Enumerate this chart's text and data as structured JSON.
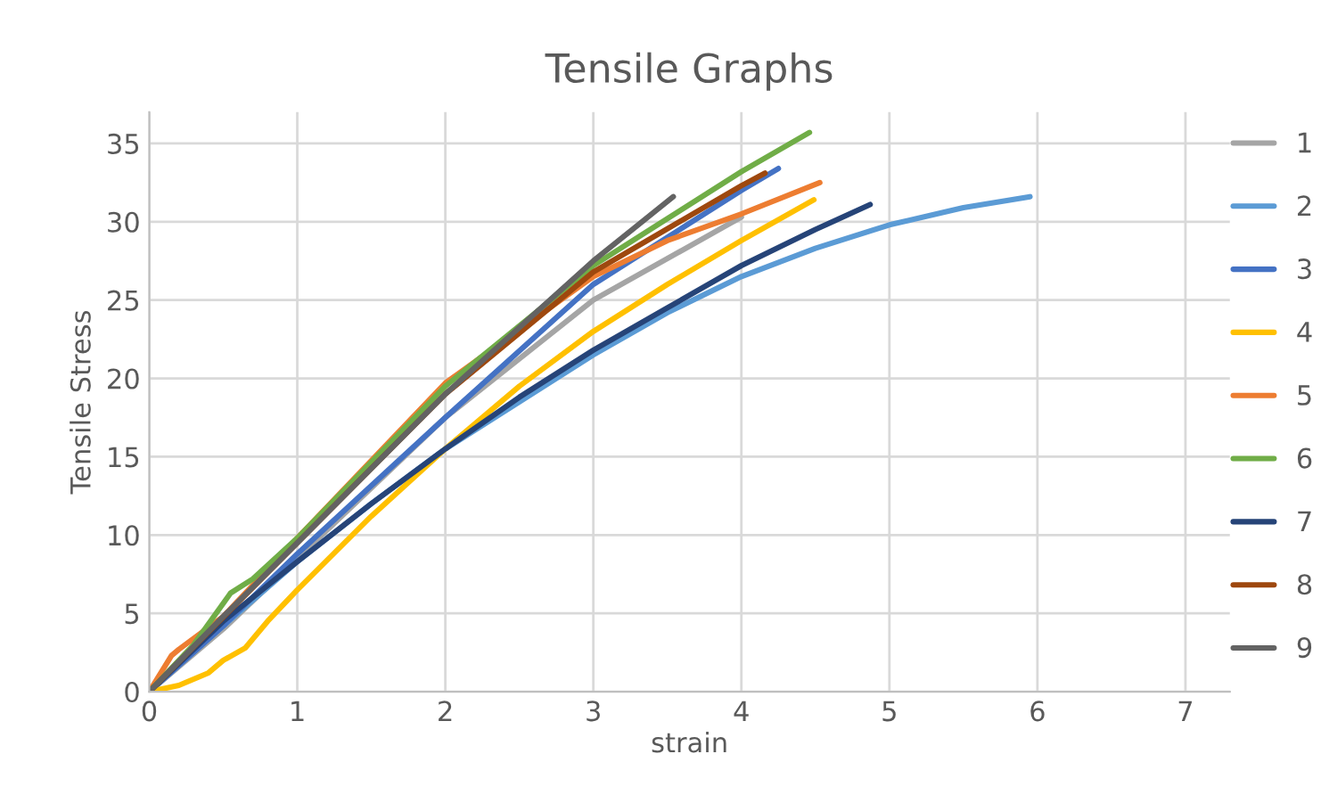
{
  "chart_data": {
    "type": "line",
    "title": "Tensile Graphs",
    "xlabel": "strain",
    "ylabel": "Tensile Stress",
    "xlim": [
      0,
      7.3
    ],
    "xticks": [
      0,
      1,
      2,
      3,
      4,
      5,
      6,
      7
    ],
    "ylim": [
      0,
      37
    ],
    "yticks": [
      0,
      5,
      10,
      15,
      20,
      25,
      30,
      35
    ],
    "grid": true,
    "legend": "right",
    "marker": "none",
    "line_style": "solid",
    "series": [
      {
        "name": "1",
        "color": "#a5a5a5",
        "x": [
          0,
          0.5,
          1,
          2,
          3,
          4
        ],
        "values": [
          0,
          4,
          8.5,
          17.5,
          25,
          30.3
        ]
      },
      {
        "name": "2",
        "color": "#5b9bd5",
        "x": [
          0,
          0.5,
          1,
          1.5,
          2,
          2.5,
          3,
          3.5,
          4,
          4.5,
          5,
          5.5,
          5.95
        ],
        "values": [
          0,
          4.2,
          8.3,
          12,
          15.5,
          18.5,
          21.5,
          24.2,
          26.5,
          28.3,
          29.8,
          30.9,
          31.6
        ]
      },
      {
        "name": "3",
        "color": "#4472c4",
        "x": [
          0,
          0.5,
          1,
          2,
          3,
          4,
          4.25
        ],
        "values": [
          0,
          4.2,
          8.8,
          17.5,
          26,
          32,
          33.4
        ]
      },
      {
        "name": "4",
        "color": "#ffc000",
        "x": [
          0,
          0.2,
          0.4,
          0.5,
          0.65,
          0.8,
          1,
          1.5,
          2,
          2.5,
          3,
          3.5,
          4,
          4.49
        ],
        "values": [
          0,
          0.4,
          1.2,
          2,
          2.8,
          4.5,
          6.5,
          11.2,
          15.5,
          19.5,
          23,
          26,
          28.8,
          31.4
        ]
      },
      {
        "name": "5",
        "color": "#ed7d31",
        "x": [
          0,
          0.15,
          0.2,
          0.5,
          1,
          2,
          3,
          3.5,
          4,
          4.53
        ],
        "values": [
          0,
          2.3,
          2.7,
          4.8,
          9.8,
          19.7,
          26.5,
          28.8,
          30.5,
          32.5
        ]
      },
      {
        "name": "6",
        "color": "#70ad47",
        "x": [
          0,
          0.3,
          0.55,
          0.7,
          1,
          2,
          3,
          4,
          4.46
        ],
        "values": [
          0,
          3,
          6.3,
          7.2,
          9.8,
          19.5,
          27.2,
          33.2,
          35.7
        ]
      },
      {
        "name": "7",
        "color": "#264478",
        "x": [
          0,
          0.5,
          1,
          1.5,
          2,
          2.5,
          3,
          3.5,
          4,
          4.5,
          4.87
        ],
        "values": [
          0,
          4.5,
          8.3,
          12,
          15.5,
          18.8,
          21.8,
          24.5,
          27.2,
          29.5,
          31.1
        ]
      },
      {
        "name": "8",
        "color": "#9e480e",
        "x": [
          0,
          1,
          2,
          3,
          4,
          4.16
        ],
        "values": [
          0,
          9.5,
          19,
          26.8,
          32.3,
          33.1
        ]
      },
      {
        "name": "9",
        "color": "#636363",
        "x": [
          0,
          0.5,
          1,
          2,
          3,
          3.54
        ],
        "values": [
          0,
          4.8,
          9.5,
          19,
          27.5,
          31.6
        ]
      }
    ]
  }
}
